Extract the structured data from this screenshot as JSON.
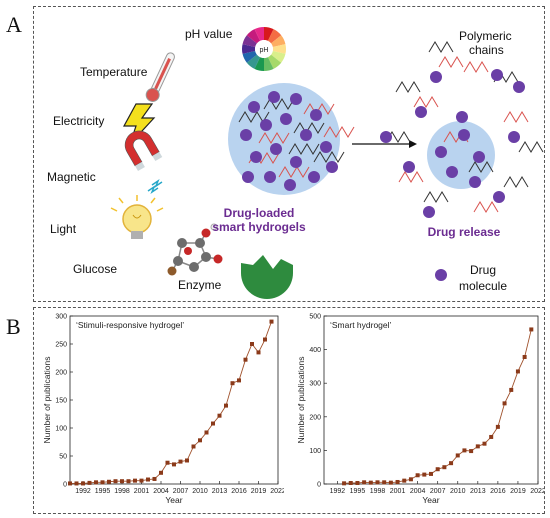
{
  "panel_a": {
    "letter": "A",
    "stimuli": [
      "pH value",
      "Temperature",
      "Electricity",
      "Magnetic",
      "Light",
      "Glucose",
      "Enzyme"
    ],
    "ph_meter_text": "pH",
    "loaded_label_line1": "Drug-loaded",
    "loaded_label_line2": "smart hydrogels",
    "release_label": "Drug release",
    "polymer_label_line1": "Polymeric",
    "polymer_label_line2": "chains",
    "drug_label_line1": "Drug",
    "drug_label_line2": "molecule",
    "colors": {
      "particle": "#6a3fa6",
      "gel": "#b9d3ef",
      "title_purple": "#6b2c91"
    }
  },
  "panel_b": {
    "letter": "B"
  },
  "chart_data": [
    {
      "type": "line",
      "title": "‘Stimuli-responsive hydrogel’",
      "xlabel": "Year",
      "ylabel": "Number of publications",
      "xlim": [
        1990,
        2022
      ],
      "ylim": [
        0,
        300
      ],
      "xticks": [
        1992,
        1995,
        1998,
        2001,
        2004,
        2007,
        2010,
        2013,
        2016,
        2019,
        2022
      ],
      "yticks": [
        0,
        50,
        100,
        150,
        200,
        250,
        300
      ],
      "marker_color": "#8b3a1a",
      "x": [
        1990,
        1991,
        1992,
        1993,
        1994,
        1995,
        1996,
        1997,
        1998,
        1999,
        2000,
        2001,
        2002,
        2003,
        2004,
        2005,
        2006,
        2007,
        2008,
        2009,
        2010,
        2011,
        2012,
        2013,
        2014,
        2015,
        2016,
        2017,
        2018,
        2019,
        2020,
        2021
      ],
      "y": [
        1,
        1,
        1,
        2,
        3,
        3,
        4,
        5,
        5,
        5,
        6,
        6,
        8,
        9,
        20,
        38,
        35,
        40,
        42,
        67,
        78,
        92,
        108,
        122,
        140,
        180,
        185,
        222,
        250,
        235,
        258,
        290
      ]
    },
    {
      "type": "line",
      "title": "‘Smart hydrogel’",
      "xlabel": "Year",
      "ylabel": "Number of publications",
      "xlim": [
        1990,
        2022
      ],
      "ylim": [
        0,
        500
      ],
      "xticks": [
        1992,
        1995,
        1998,
        2001,
        2004,
        2007,
        2010,
        2013,
        2016,
        2019,
        2022
      ],
      "yticks": [
        0,
        100,
        200,
        300,
        400,
        500
      ],
      "marker_color": "#8b3a1a",
      "x": [
        1993,
        1994,
        1995,
        1996,
        1997,
        1998,
        1999,
        2000,
        2001,
        2002,
        2003,
        2004,
        2005,
        2006,
        2007,
        2008,
        2009,
        2010,
        2011,
        2012,
        2013,
        2014,
        2015,
        2016,
        2017,
        2018,
        2019,
        2020,
        2021
      ],
      "y": [
        2,
        3,
        3,
        5,
        4,
        5,
        5,
        4,
        6,
        10,
        14,
        26,
        28,
        30,
        44,
        50,
        62,
        85,
        100,
        98,
        112,
        120,
        140,
        170,
        240,
        280,
        335,
        378,
        460
      ]
    }
  ]
}
